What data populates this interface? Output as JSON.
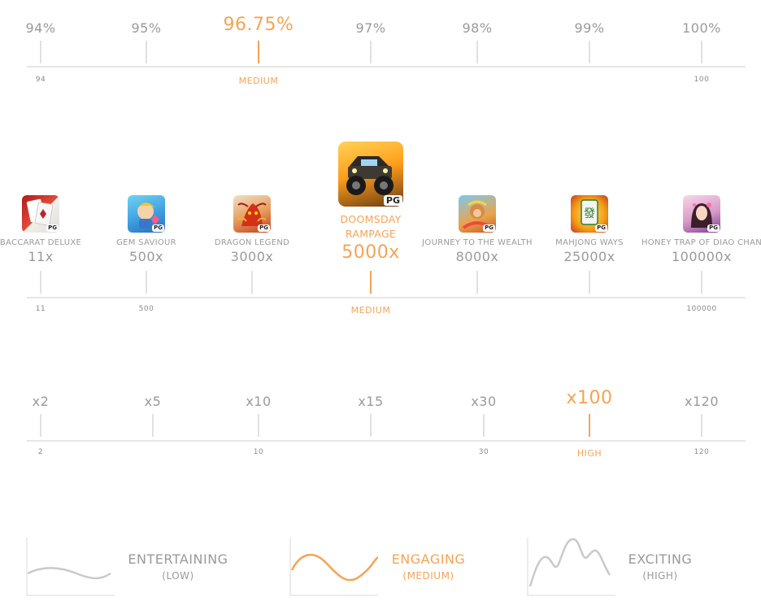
{
  "rtp": {
    "points": [
      "94%",
      "95%",
      "96.75%",
      "97%",
      "98%",
      "99%",
      "100%"
    ],
    "active_index": 2,
    "scale_labels": [
      "94",
      "100"
    ],
    "level": "MEDIUM"
  },
  "win": {
    "games": [
      {
        "name": "BACCARAT DELUXE",
        "mult": "11x",
        "badge": "PG",
        "icon": "baccarat-card-icon"
      },
      {
        "name": "GEM SAVIOUR",
        "mult": "500x",
        "badge": "PG",
        "icon": "gem-hero-icon"
      },
      {
        "name": "DRAGON LEGEND",
        "mult": "3000x",
        "badge": "PG",
        "icon": "dragon-icon"
      },
      {
        "name": "DOOMSDAY RAMPAGE",
        "mult": "5000x",
        "badge": "PG",
        "icon": "monster-truck-icon"
      },
      {
        "name": "JOURNEY TO THE WEALTH",
        "mult": "8000x",
        "badge": "PG",
        "icon": "monkey-king-icon"
      },
      {
        "name": "MAHJONG WAYS",
        "mult": "25000x",
        "badge": "PG",
        "icon": "mahjong-tile-icon"
      },
      {
        "name": "HONEY TRAP OF DIAO CHAN",
        "mult": "100000x",
        "badge": "PG",
        "icon": "princess-icon"
      }
    ],
    "active_index": 3,
    "scale_labels": [
      "11",
      "500",
      "100000"
    ],
    "level": "MEDIUM"
  },
  "volatility_scale": {
    "points": [
      "x2",
      "x5",
      "x10",
      "x15",
      "x30",
      "x100",
      "x120"
    ],
    "active_index": 5,
    "scale_labels": [
      "2",
      "10",
      "30",
      "120"
    ],
    "level": "HIGH"
  },
  "profiles": [
    {
      "label": "ENTERTAINING",
      "sub": "(LOW)",
      "icon": "low-wave-icon"
    },
    {
      "label": "ENGAGING",
      "sub": "(MEDIUM)",
      "icon": "medium-wave-icon"
    },
    {
      "label": "EXCITING",
      "sub": "(HIGH)",
      "icon": "high-peaks-icon"
    }
  ],
  "active_profile": 1,
  "colors": {
    "accent": "#f5a455",
    "muted": "#9a9a9a",
    "line": "#e6e6e6"
  }
}
